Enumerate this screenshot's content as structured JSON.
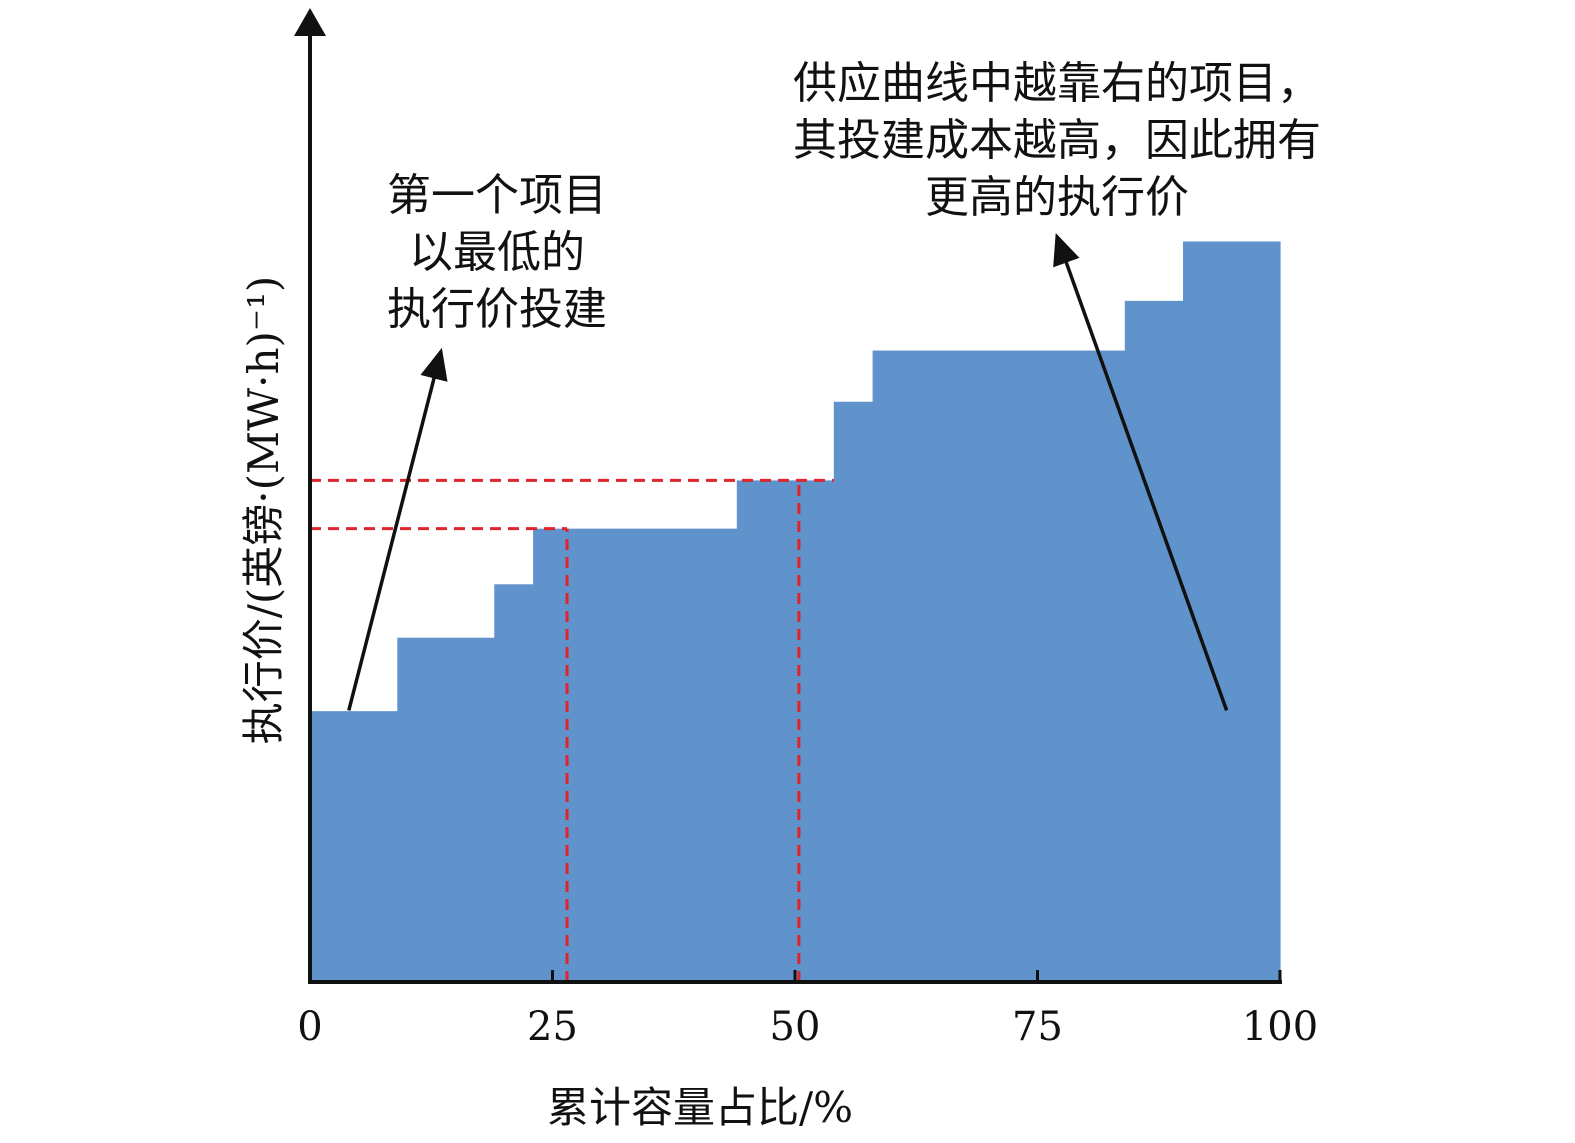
{
  "chart_data": {
    "type": "bar",
    "subtype": "step-supply-curve",
    "title": "",
    "xlabel": "累计容量占比/%",
    "ylabel": "执行价/(英镑·(MW·h)⁻¹)",
    "xlim": [
      0,
      100
    ],
    "ylim": [
      0,
      100
    ],
    "x_ticks": [
      "0",
      "25",
      "50",
      "75",
      "100"
    ],
    "y_ticks": [],
    "grid": false,
    "legend": "none",
    "bar_color": "#6092CB",
    "steps": [
      {
        "x_start": 0,
        "x_end": 9,
        "value": 36.5
      },
      {
        "x_start": 9,
        "x_end": 19,
        "value": 46.4
      },
      {
        "x_start": 19,
        "x_end": 23,
        "value": 53.6
      },
      {
        "x_start": 23,
        "x_end": 44,
        "value": 61.1
      },
      {
        "x_start": 44,
        "x_end": 54,
        "value": 67.6
      },
      {
        "x_start": 54,
        "x_end": 58,
        "value": 78.2
      },
      {
        "x_start": 58,
        "x_end": 84,
        "value": 85.1
      },
      {
        "x_start": 84,
        "x_end": 90,
        "value": 91.8
      },
      {
        "x_start": 90,
        "x_end": 100,
        "value": 99.8
      }
    ],
    "reference_lines": {
      "color": "#E0242B",
      "style": "dashed",
      "segments": [
        {
          "x": 0,
          "y": 67.6,
          "to_x": 54
        },
        {
          "x": 0,
          "y": 61.1,
          "to_x": 26.5
        },
        {
          "x": 26.5,
          "y": 0,
          "to_y": 61.1
        },
        {
          "x": 50.4,
          "y": 0,
          "to_y": 67.6
        }
      ]
    },
    "annotations": [
      {
        "lines": [
          "第一个项目",
          "以最低的",
          "执行价投建"
        ],
        "arrow_from": [
          4,
          36.6
        ],
        "arrow_to": [
          13.5,
          85
        ]
      },
      {
        "lines": [
          "供应曲线中越靠右的项目，",
          "其投建成本越高，因此拥有",
          "更高的执行价"
        ],
        "arrow_from": [
          94.5,
          36.6
        ],
        "arrow_to": [
          77,
          100.5
        ]
      }
    ]
  }
}
